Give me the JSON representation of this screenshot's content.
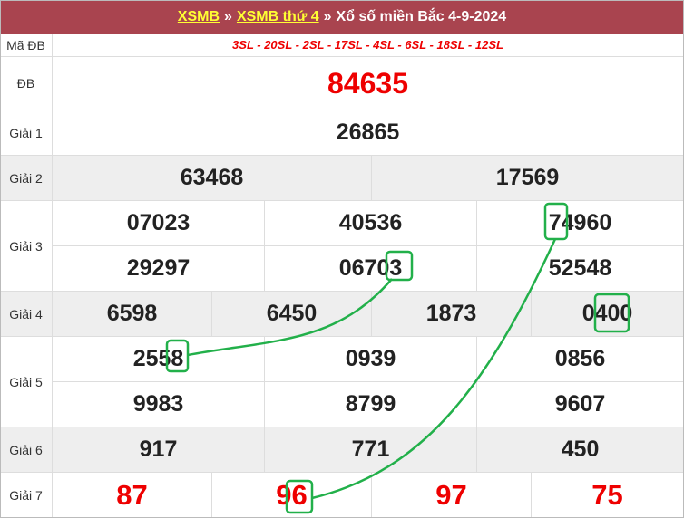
{
  "header": {
    "link1": "XSMB",
    "sep1": "»",
    "link2": "XSMB thứ 4",
    "sep2": "»",
    "title": "Xổ số miền Bắc 4-9-2024"
  },
  "labels": {
    "ma": "Mã ĐB",
    "db": "ĐB",
    "g1": "Giải 1",
    "g2": "Giải 2",
    "g3": "Giải 3",
    "g4": "Giải 4",
    "g5": "Giải 5",
    "g6": "Giải 6",
    "g7": "Giải 7"
  },
  "ma_db": "3SL - 20SL - 2SL - 17SL - 4SL - 6SL - 18SL - 12SL",
  "db": "84635",
  "g1": [
    "26865"
  ],
  "g2": [
    "63468",
    "17569"
  ],
  "g3": [
    "07023",
    "40536",
    "74960",
    "29297",
    "06703",
    "52548"
  ],
  "g4": [
    "6598",
    "6450",
    "1873",
    "0400"
  ],
  "g5": [
    "2558",
    "0939",
    "0856",
    "9983",
    "8799",
    "9607"
  ],
  "g6": [
    "917",
    "771",
    "450"
  ],
  "g7": [
    "87",
    "96",
    "97",
    "75"
  ],
  "colors": {
    "header": "#a9444f",
    "link": "#ffff33",
    "special": "#ee0000",
    "highlight": "#22b04a"
  }
}
